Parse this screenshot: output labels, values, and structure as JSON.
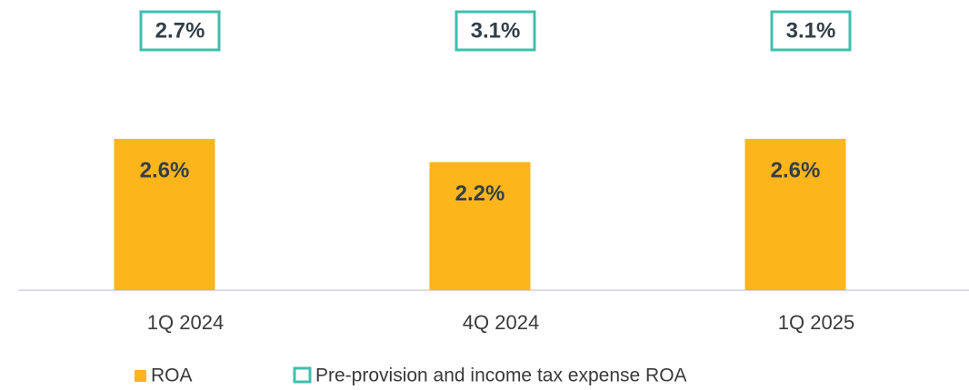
{
  "chart_data": {
    "type": "bar",
    "categories": [
      "1Q 2024",
      "4Q 2024",
      "1Q 2025"
    ],
    "series": [
      {
        "name": "ROA",
        "color": "#fdb51c",
        "values": [
          2.6,
          2.2,
          2.6
        ],
        "value_labels": [
          "2.6%",
          "2.2%",
          "2.6%"
        ]
      },
      {
        "name": "Pre-provision and income tax expense ROA",
        "color": "#3fbfad",
        "values": [
          2.7,
          3.1,
          3.1
        ],
        "value_labels": [
          "2.7%",
          "3.1%",
          "3.1%"
        ]
      }
    ]
  }
}
